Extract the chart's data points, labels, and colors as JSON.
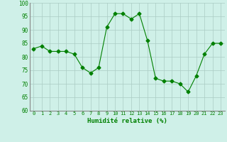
{
  "x": [
    0,
    1,
    2,
    3,
    4,
    5,
    6,
    7,
    8,
    9,
    10,
    11,
    12,
    13,
    14,
    15,
    16,
    17,
    18,
    19,
    20,
    21,
    22,
    23
  ],
  "y": [
    83,
    84,
    82,
    82,
    82,
    81,
    76,
    74,
    76,
    91,
    96,
    96,
    94,
    96,
    86,
    72,
    71,
    71,
    70,
    67,
    73,
    81,
    85,
    85
  ],
  "line_color": "#008000",
  "marker": "D",
  "marker_size": 2.5,
  "bg_color": "#cff0e8",
  "grid_color": "#aaccc4",
  "xlabel": "Humidité relative (%)",
  "xlabel_color": "#008000",
  "ylim": [
    60,
    100
  ],
  "xlim": [
    -0.5,
    23.5
  ],
  "yticks": [
    60,
    65,
    70,
    75,
    80,
    85,
    90,
    95,
    100
  ],
  "xticks": [
    0,
    1,
    2,
    3,
    4,
    5,
    6,
    7,
    8,
    9,
    10,
    11,
    12,
    13,
    14,
    15,
    16,
    17,
    18,
    19,
    20,
    21,
    22,
    23
  ]
}
